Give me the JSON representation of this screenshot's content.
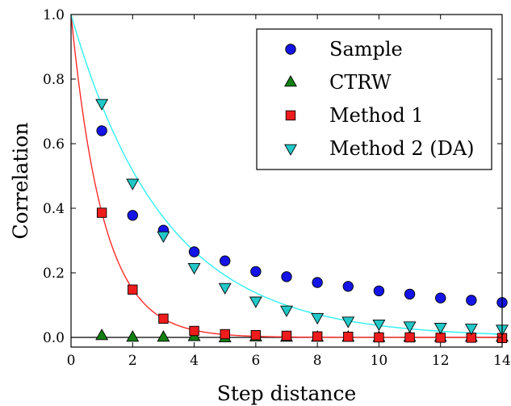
{
  "chart_data": {
    "type": "scatter",
    "title": "",
    "xlabel": "Step distance",
    "ylabel": "Correlation",
    "xlim": [
      0,
      14
    ],
    "ylim": [
      -0.03,
      1.0
    ],
    "xticks": [
      0,
      2,
      4,
      6,
      8,
      10,
      12,
      14
    ],
    "xtick_labels": [
      "0",
      "2",
      "4",
      "6",
      "8",
      "10",
      "12",
      "14"
    ],
    "yticks": [
      0.0,
      0.2,
      0.4,
      0.6,
      0.8,
      1.0
    ],
    "ytick_labels": [
      "0.0",
      "0.2",
      "0.4",
      "0.6",
      "0.8",
      "1.0"
    ],
    "grid": false,
    "legend_position": "top-right",
    "reference_line": {
      "y": 0.0,
      "color": "#000000"
    },
    "series": [
      {
        "name": "Sample",
        "marker": "circle",
        "color": "#1414e6",
        "x": [
          1,
          2,
          3,
          4,
          5,
          6,
          7,
          8,
          9,
          10,
          11,
          12,
          13,
          14
        ],
        "y": [
          0.64,
          0.378,
          0.332,
          0.265,
          0.237,
          0.204,
          0.188,
          0.17,
          0.158,
          0.144,
          0.134,
          0.122,
          0.115,
          0.108
        ]
      },
      {
        "name": "CTRW",
        "marker": "triangle-up",
        "color": "#127f12",
        "x": [
          1,
          2,
          3,
          4,
          5,
          6,
          7,
          8,
          9,
          10,
          11,
          12,
          13,
          14
        ],
        "y": [
          0.005,
          0.0,
          0.0,
          0.002,
          -0.002,
          0.001,
          0.0,
          0.0,
          0.0,
          -0.001,
          0.0,
          0.0,
          0.0,
          0.0
        ]
      },
      {
        "name": "Method 1",
        "marker": "square",
        "color": "#ee1c1c",
        "x": [
          1,
          2,
          3,
          4,
          5,
          6,
          7,
          8,
          9,
          10,
          11,
          12,
          13,
          14
        ],
        "y": [
          0.386,
          0.148,
          0.058,
          0.02,
          0.01,
          0.007,
          0.005,
          0.003,
          0.002,
          0.0,
          0.0,
          -0.001,
          -0.001,
          -0.002
        ]
      },
      {
        "name": "Method 2 (DA)",
        "marker": "triangle-down",
        "color": "#22c8c8",
        "x": [
          1,
          2,
          3,
          4,
          5,
          6,
          7,
          8,
          9,
          10,
          11,
          12,
          13,
          14
        ],
        "y": [
          0.725,
          0.478,
          0.315,
          0.217,
          0.155,
          0.113,
          0.085,
          0.062,
          0.051,
          0.042,
          0.036,
          0.032,
          0.029,
          0.026
        ]
      }
    ],
    "fit_curves": [
      {
        "color": "#ff2a2a",
        "function": "exp",
        "decay": 0.95
      },
      {
        "color": "#2ef0f0",
        "function": "exp",
        "decay": 0.33
      }
    ]
  }
}
